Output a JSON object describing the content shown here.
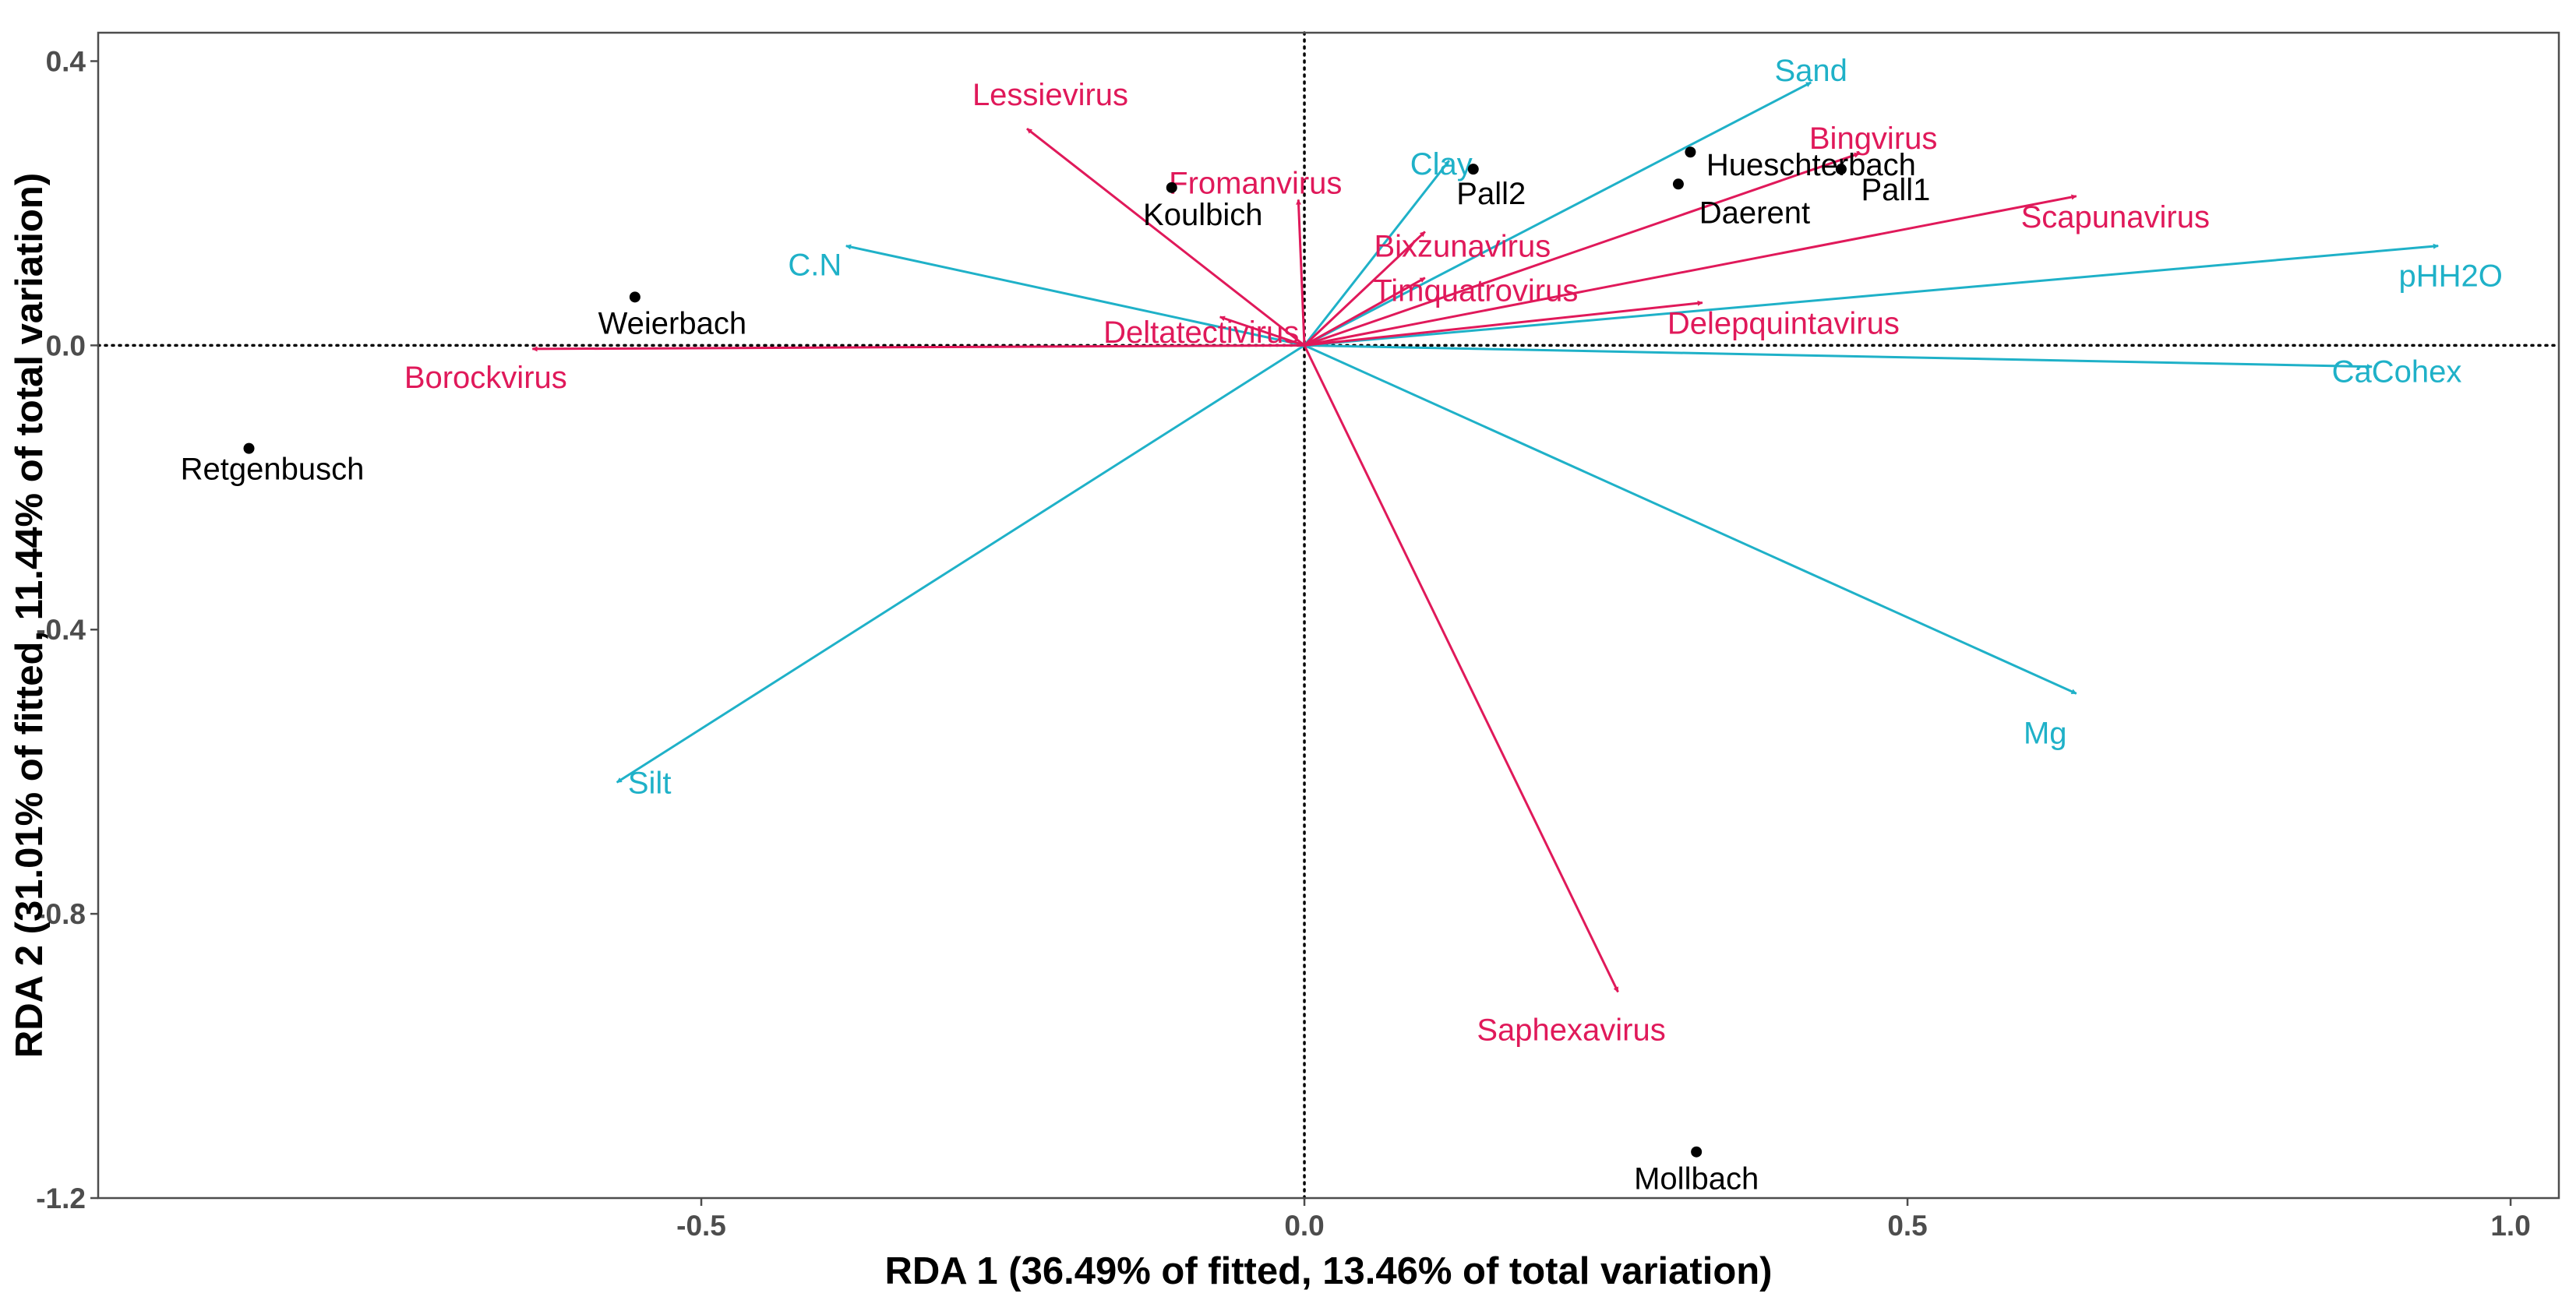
{
  "chart_data": {
    "type": "scatter",
    "subtype": "rda-biplot",
    "title": "",
    "xlabel": "RDA 1 (36.49% of fitted, 13.46% of total variation)",
    "ylabel": "RDA 2 (31.01% of fitted, 11.44% of total variation)",
    "xlim": [
      -1.0,
      1.04
    ],
    "ylim": [
      -1.2,
      0.44
    ],
    "xticks": [
      {
        "value": -0.5,
        "label": "-0.5"
      },
      {
        "value": 0.0,
        "label": "0.0"
      },
      {
        "value": 0.5,
        "label": "0.5"
      },
      {
        "value": 1.0,
        "label": "1.0"
      }
    ],
    "yticks": [
      {
        "value": 0.4,
        "label": "0.4"
      },
      {
        "value": 0.0,
        "label": "0.0"
      },
      {
        "value": -0.4,
        "label": "-0.4"
      },
      {
        "value": -0.8,
        "label": "-0.8"
      },
      {
        "value": -1.2,
        "label": "-1.2"
      }
    ],
    "grid": false,
    "reference_lines": {
      "x": 0,
      "y": 0,
      "style": "dotted"
    },
    "colors": {
      "sites": "#000000",
      "environment": "#1fb1c8",
      "virus": "#e0195a",
      "frame": "#4d4d4d"
    },
    "sites": [
      {
        "name": "Retgenbusch",
        "x": -0.875,
        "y": -0.145
      },
      {
        "name": "Weierbach",
        "x": -0.555,
        "y": 0.068
      },
      {
        "name": "Koulbich",
        "x": -0.11,
        "y": 0.222
      },
      {
        "name": "Pall2",
        "x": 0.14,
        "y": 0.248
      },
      {
        "name": "Hueschterbach",
        "x": 0.32,
        "y": 0.272
      },
      {
        "name": "Daerent",
        "x": 0.31,
        "y": 0.227
      },
      {
        "name": "Pall1",
        "x": 0.445,
        "y": 0.248
      },
      {
        "name": "Mollbach",
        "x": 0.325,
        "y": -1.135
      }
    ],
    "environment_vectors": [
      {
        "name": "Sand",
        "x": 0.42,
        "y": 0.37
      },
      {
        "name": "Clay",
        "x": 0.12,
        "y": 0.26
      },
      {
        "name": "C.N",
        "x": -0.38,
        "y": 0.14
      },
      {
        "name": "pHH2O",
        "x": 0.94,
        "y": 0.14
      },
      {
        "name": "CaCohex",
        "x": 0.885,
        "y": -0.03
      },
      {
        "name": "Mg",
        "x": 0.64,
        "y": -0.49
      },
      {
        "name": "Silt",
        "x": -0.57,
        "y": -0.615
      }
    ],
    "virus_vectors": [
      {
        "name": "Lessievirus",
        "x": -0.23,
        "y": 0.305
      },
      {
        "name": "Fromanvirus",
        "x": -0.005,
        "y": 0.205
      },
      {
        "name": "Bingvirus",
        "x": 0.46,
        "y": 0.27
      },
      {
        "name": "Scapunavirus",
        "x": 0.64,
        "y": 0.21
      },
      {
        "name": "Bixzunavirus",
        "x": 0.1,
        "y": 0.16
      },
      {
        "name": "Timquatrovirus",
        "x": 0.1,
        "y": 0.095
      },
      {
        "name": "Delepquintavirus",
        "x": 0.33,
        "y": 0.06
      },
      {
        "name": "Deltatectivirus",
        "x": -0.07,
        "y": 0.04
      },
      {
        "name": "Borockvirus",
        "x": -0.64,
        "y": -0.005
      },
      {
        "name": "Saphexavirus",
        "x": 0.26,
        "y": -0.91
      }
    ]
  }
}
